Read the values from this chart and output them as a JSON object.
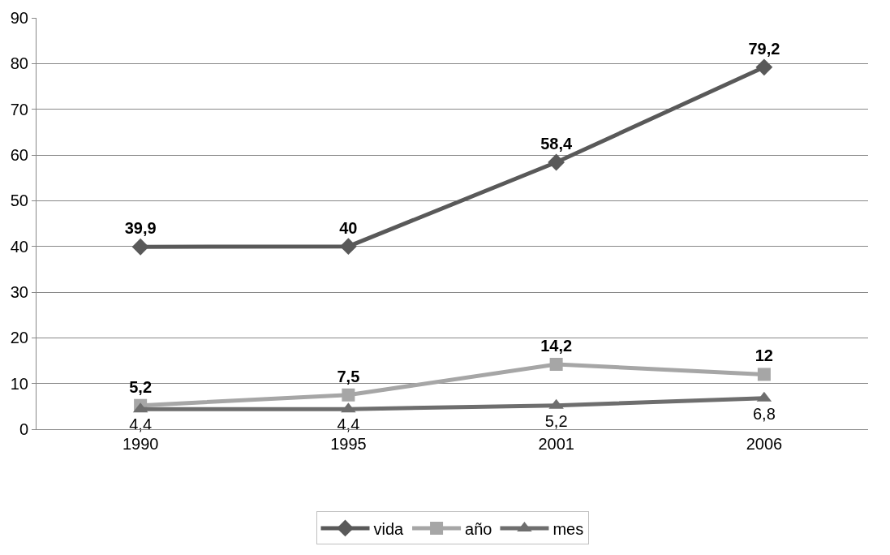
{
  "chart_data": {
    "type": "line",
    "categories": [
      "1990",
      "1995",
      "2001",
      "2006"
    ],
    "series": [
      {
        "name": "vida",
        "color": "#595959",
        "marker": "diamond",
        "values": [
          39.9,
          40,
          58.4,
          79.2
        ],
        "value_labels": [
          "39,9",
          "40",
          "58,4",
          "79,2"
        ]
      },
      {
        "name": "año",
        "color": "#a6a6a6",
        "marker": "square",
        "values": [
          5.2,
          7.5,
          14.2,
          12
        ],
        "value_labels": [
          "5,2",
          "7,5",
          "14,2",
          "12"
        ]
      },
      {
        "name": "mes",
        "color": "#6e6e6e",
        "marker": "triangle",
        "values": [
          4.4,
          4.4,
          5.2,
          6.8
        ],
        "value_labels": [
          "4,4",
          "4,4",
          "5,2",
          "6,8"
        ]
      }
    ],
    "ylim": [
      0,
      90
    ],
    "yticks": [
      0,
      10,
      20,
      30,
      40,
      50,
      60,
      70,
      80,
      90
    ],
    "grid": "y",
    "legend": "bottom"
  }
}
